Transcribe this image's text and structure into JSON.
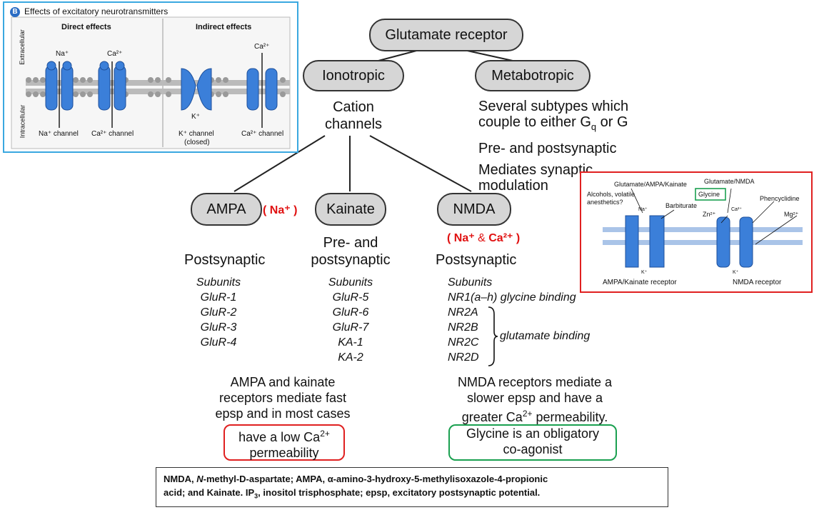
{
  "root": {
    "label": "Glutamate receptor"
  },
  "ionotropic": {
    "label": "Ionotropic",
    "desc_line1": "Cation",
    "desc_line2": "channels"
  },
  "metabotropic": {
    "label": "Metabotropic",
    "line1": "Several subtypes which",
    "line2_pre": "couple to either G",
    "line2_sub": "q",
    "line2_post": " or G",
    "line3": "Pre- and postsynaptic",
    "line4": "Mediates synaptic",
    "line5": "modulation"
  },
  "ampa": {
    "label": "AMPA",
    "ion_open": "( ",
    "ion": "Na⁺",
    "ion_close": " )",
    "location": "Postsynaptic",
    "subunits_title": "Subunits",
    "subunits": [
      "GluR-1",
      "GluR-2",
      "GluR-3",
      "GluR-4"
    ]
  },
  "kainate": {
    "label": "Kainate",
    "location_line1": "Pre- and",
    "location_line2": "postsynaptic",
    "subunits_title": "Subunits",
    "subunits": [
      "GluR-5",
      "GluR-6",
      "GluR-7",
      "KA-1",
      "KA-2"
    ]
  },
  "nmda": {
    "label": "NMDA",
    "ion_open": "( ",
    "ion1": "Na⁺",
    "ion_amp": " & ",
    "ion2": "Ca²⁺",
    "ion_close": " )",
    "location": "Postsynaptic",
    "subunits_title": "Subunits",
    "nr1": "NR1(a–h) glycine binding",
    "nr2": [
      "NR2A",
      "NR2B",
      "NR2C",
      "NR2D"
    ],
    "glutamate_binding": "glutamate binding"
  },
  "ampa_kainate_summary": {
    "line1": "AMPA and kainate",
    "line2": "receptors mediate fast",
    "line3": "epsp and in most cases",
    "box_line1_pre": "have a low Ca",
    "box_line1_sup": "2+",
    "box_line2": "permeability"
  },
  "nmda_summary": {
    "line1": "NMDA receptors mediate a",
    "line2": "slower epsp and have a",
    "line3_pre": "greater Ca",
    "line3_sup": "2+",
    "line3_post": " permeability.",
    "box_line1": "Glycine is an obligatory",
    "box_line2": "co-agonist"
  },
  "panel_b": {
    "badge": "B",
    "title": "Effects of excitatory neurotransmitters",
    "direct": "Direct effects",
    "indirect": "Indirect effects",
    "extracellular": "Extracellular",
    "intracellular": "Intracellular",
    "na_top": "Na⁺",
    "ca_top": "Ca²⁺",
    "ca_top2": "Ca²⁺",
    "k_label": "K⁺",
    "na_channel": "Na⁺ channel",
    "ca_channel": "Ca²⁺ channel",
    "k_channel": "K⁺ channel",
    "k_closed": "(closed)",
    "ca_channel2": "Ca²⁺ channel"
  },
  "panel_receptor": {
    "glu_ampa_kainate": "Glutamate/AMPA/Kainate",
    "alcohols": "Alcohols, volatile",
    "anesthetics": "anesthetics?",
    "barbiturate": "Barbiturate",
    "glu_nmda": "Glutamate/NMDA",
    "glycine": "Glycine",
    "phencyclidine": "Phencyclidine",
    "zn": "Zn²⁺",
    "mg": "Mg²⁺",
    "na": "Na⁺",
    "ca": "Ca²⁺",
    "k1": "K⁺",
    "k2": "K⁺",
    "ampa_receptor": "AMPA/Kainate receptor",
    "nmda_receptor": "NMDA receptor"
  },
  "footer": {
    "line1_a": "NMDA, ",
    "line1_b": "N",
    "line1_c": "-methyl-D-aspartate; AMPA, α-amino-3-hydroxy-5-methylisoxazole-4-propionic",
    "line2_a": "acid; and Kainate. IP",
    "line2_sub": "3",
    "line2_b": ", inositol trisphosphate; epsp, excitatory postsynaptic potential."
  },
  "colors": {
    "node_fill": "#d6d6d6",
    "ion_red": "#e01010",
    "green_box": "#1aa050",
    "blue_border": "#3aa8e0",
    "channel_blue": "#3b7fd9"
  }
}
